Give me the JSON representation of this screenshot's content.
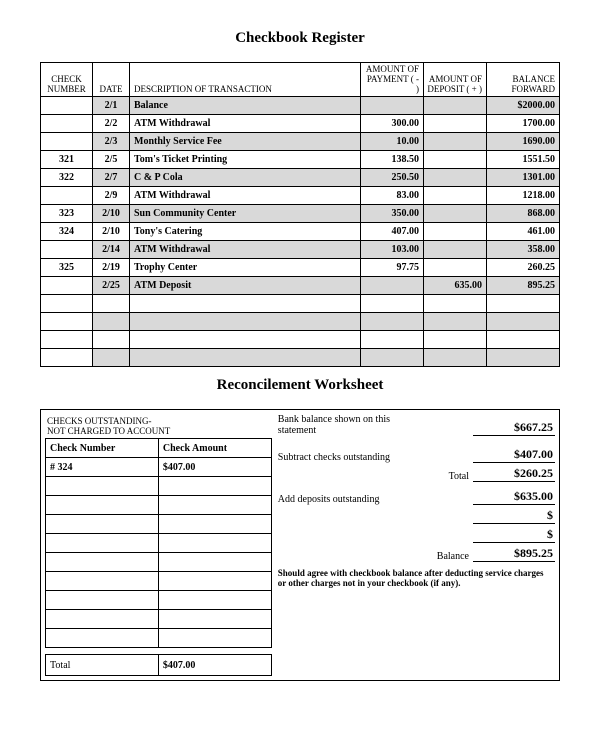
{
  "titles": {
    "register": "Checkbook Register",
    "reconcilement": "Reconcilement Worksheet"
  },
  "register": {
    "headers": {
      "check": "CHECK NUMBER",
      "date": "DATE",
      "desc": "DESCRIPTION   OF  TRANSACTION",
      "payment": "AMOUNT OF PAYMENT ( - )",
      "deposit": "AMOUNT OF DEPOSIT ( + )",
      "balance": "BALANCE FORWARD"
    },
    "rows": [
      {
        "check": "",
        "date": "2/1",
        "desc": "Balance",
        "pay": "",
        "dep": "",
        "bal": "$2000.00",
        "shaded": true,
        "bold": true
      },
      {
        "check": "",
        "date": "2/2",
        "desc": "ATM Withdrawal",
        "pay": "300.00",
        "dep": "",
        "bal": "1700.00",
        "shaded": false,
        "bold": true
      },
      {
        "check": "",
        "date": "2/3",
        "desc": "Monthly Service Fee",
        "pay": "10.00",
        "dep": "",
        "bal": "1690.00",
        "shaded": true,
        "bold": true
      },
      {
        "check": "321",
        "date": "2/5",
        "desc": "Tom's Ticket Printing",
        "pay": "138.50",
        "dep": "",
        "bal": "1551.50",
        "shaded": false,
        "bold": true
      },
      {
        "check": "322",
        "date": "2/7",
        "desc": "C & P Cola",
        "pay": "250.50",
        "dep": "",
        "bal": "1301.00",
        "shaded": true,
        "bold": true
      },
      {
        "check": "",
        "date": "2/9",
        "desc": "ATM Withdrawal",
        "pay": "83.00",
        "dep": "",
        "bal": "1218.00",
        "shaded": false,
        "bold": true
      },
      {
        "check": "323",
        "date": "2/10",
        "desc": "Sun Community Center",
        "pay": "350.00",
        "dep": "",
        "bal": "868.00",
        "shaded": true,
        "bold": true
      },
      {
        "check": "324",
        "date": "2/10",
        "desc": "Tony's Catering",
        "pay": "407.00",
        "dep": "",
        "bal": "461.00",
        "shaded": false,
        "bold": true
      },
      {
        "check": "",
        "date": "2/14",
        "desc": "ATM Withdrawal",
        "pay": "103.00",
        "dep": "",
        "bal": "358.00",
        "shaded": true,
        "bold": true
      },
      {
        "check": "325",
        "date": "2/19",
        "desc": "Trophy Center",
        "pay": "97.75",
        "dep": "",
        "bal": "260.25",
        "shaded": false,
        "bold": true
      },
      {
        "check": "",
        "date": "2/25",
        "desc": "ATM Deposit",
        "pay": "",
        "dep": "635.00",
        "bal": "895.25",
        "shaded": true,
        "bold": true
      },
      {
        "check": "",
        "date": "",
        "desc": "",
        "pay": "",
        "dep": "",
        "bal": "",
        "shaded": false,
        "bold": false
      },
      {
        "check": "",
        "date": "",
        "desc": "",
        "pay": "",
        "dep": "",
        "bal": "",
        "shaded": true,
        "bold": false
      },
      {
        "check": "",
        "date": "",
        "desc": "",
        "pay": "",
        "dep": "",
        "bal": "",
        "shaded": false,
        "bold": false
      },
      {
        "check": "",
        "date": "",
        "desc": "",
        "pay": "",
        "dep": "",
        "bal": "",
        "shaded": true,
        "bold": false
      }
    ]
  },
  "reconcilement": {
    "outstanding_header": "CHECKS OUTSTANDING-\nNOT CHARGED TO ACCOUNT",
    "col_check": "Check Number",
    "col_amount": "Check Amount",
    "outstanding_rows": [
      {
        "num": "# 324",
        "amt": "$407.00"
      },
      {
        "num": "",
        "amt": ""
      },
      {
        "num": "",
        "amt": ""
      },
      {
        "num": "",
        "amt": ""
      },
      {
        "num": "",
        "amt": ""
      },
      {
        "num": "",
        "amt": ""
      },
      {
        "num": "",
        "amt": ""
      },
      {
        "num": "",
        "amt": ""
      },
      {
        "num": "",
        "amt": ""
      },
      {
        "num": "",
        "amt": ""
      }
    ],
    "total_label": "Total",
    "total_amount": "$407.00",
    "lines": {
      "bank_balance_label": "Bank balance shown on this statement",
      "bank_balance": "$667.25",
      "subtract_label": "Subtract checks outstanding",
      "subtract": "$407.00",
      "total_sublabel": "Total",
      "total": "$260.25",
      "add_label": "Add deposits outstanding",
      "add": "$635.00",
      "blank1": "$",
      "blank2": "$",
      "balance_sublabel": "Balance",
      "balance": "$895.25"
    },
    "note": "Should agree with checkbook balance after deducting service charges or other charges not in your checkbook (if any)."
  }
}
